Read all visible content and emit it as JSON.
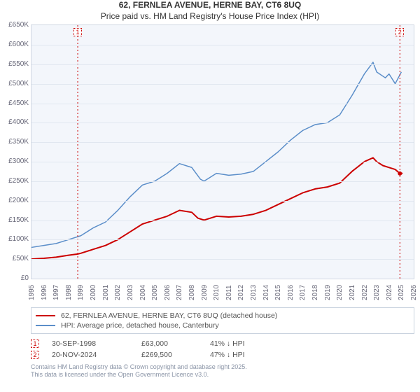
{
  "title": "62, FERNLEA AVENUE, HERNE BAY, CT6 8UQ",
  "subtitle": "Price paid vs. HM Land Registry's House Price Index (HPI)",
  "chart": {
    "type": "line",
    "background_color": "#f3f6fb",
    "grid_color": "#e1e7f0",
    "border_color": "#d0d7e2",
    "x": {
      "min": 1995,
      "max": 2026,
      "ticks": [
        1995,
        1996,
        1997,
        1998,
        1999,
        2000,
        2001,
        2002,
        2003,
        2004,
        2005,
        2006,
        2007,
        2008,
        2009,
        2010,
        2011,
        2012,
        2013,
        2014,
        2015,
        2016,
        2017,
        2018,
        2019,
        2020,
        2021,
        2022,
        2023,
        2024,
        2025,
        2026
      ]
    },
    "y": {
      "min": 0,
      "max": 650000,
      "tick_step": 50000,
      "prefix": "£",
      "suffix": "K",
      "divide": 1000
    },
    "series": [
      {
        "name": "62, FERNLEA AVENUE, HERNE BAY, CT6 8UQ (detached house)",
        "color": "#cc0000",
        "line_width": 2,
        "data": [
          [
            1995,
            50000
          ],
          [
            1996,
            52000
          ],
          [
            1997,
            55000
          ],
          [
            1998,
            60000
          ],
          [
            1998.75,
            63000
          ],
          [
            1999,
            65000
          ],
          [
            2000,
            75000
          ],
          [
            2001,
            85000
          ],
          [
            2002,
            100000
          ],
          [
            2003,
            120000
          ],
          [
            2004,
            140000
          ],
          [
            2005,
            150000
          ],
          [
            2006,
            160000
          ],
          [
            2007,
            175000
          ],
          [
            2008,
            170000
          ],
          [
            2008.5,
            155000
          ],
          [
            2009,
            150000
          ],
          [
            2010,
            160000
          ],
          [
            2011,
            158000
          ],
          [
            2012,
            160000
          ],
          [
            2013,
            165000
          ],
          [
            2014,
            175000
          ],
          [
            2015,
            190000
          ],
          [
            2016,
            205000
          ],
          [
            2017,
            220000
          ],
          [
            2018,
            230000
          ],
          [
            2019,
            235000
          ],
          [
            2020,
            245000
          ],
          [
            2021,
            275000
          ],
          [
            2022,
            300000
          ],
          [
            2022.7,
            310000
          ],
          [
            2023,
            300000
          ],
          [
            2023.5,
            290000
          ],
          [
            2024,
            285000
          ],
          [
            2024.5,
            280000
          ],
          [
            2024.88,
            269500
          ],
          [
            2025.1,
            270000
          ]
        ],
        "end_dot": {
          "x": 2024.88,
          "y": 269500,
          "radius": 3
        }
      },
      {
        "name": "HPI: Average price, detached house, Canterbury",
        "color": "#5b8ec9",
        "line_width": 1.5,
        "data": [
          [
            1995,
            80000
          ],
          [
            1996,
            85000
          ],
          [
            1997,
            90000
          ],
          [
            1998,
            100000
          ],
          [
            1999,
            110000
          ],
          [
            2000,
            130000
          ],
          [
            2001,
            145000
          ],
          [
            2002,
            175000
          ],
          [
            2003,
            210000
          ],
          [
            2004,
            240000
          ],
          [
            2005,
            250000
          ],
          [
            2006,
            270000
          ],
          [
            2007,
            295000
          ],
          [
            2008,
            285000
          ],
          [
            2008.7,
            255000
          ],
          [
            2009,
            250000
          ],
          [
            2010,
            270000
          ],
          [
            2011,
            265000
          ],
          [
            2012,
            268000
          ],
          [
            2013,
            275000
          ],
          [
            2014,
            300000
          ],
          [
            2015,
            325000
          ],
          [
            2016,
            355000
          ],
          [
            2017,
            380000
          ],
          [
            2018,
            395000
          ],
          [
            2019,
            400000
          ],
          [
            2020,
            420000
          ],
          [
            2021,
            470000
          ],
          [
            2022,
            525000
          ],
          [
            2022.7,
            555000
          ],
          [
            2023,
            530000
          ],
          [
            2023.7,
            515000
          ],
          [
            2024,
            525000
          ],
          [
            2024.5,
            500000
          ],
          [
            2025,
            530000
          ]
        ]
      }
    ],
    "markers": [
      {
        "label": "1",
        "x": 1998.75,
        "color": "#cc0000"
      },
      {
        "label": "2",
        "x": 2024.88,
        "color": "#cc0000"
      }
    ]
  },
  "legend": {
    "items": [
      {
        "color": "#cc0000",
        "label": "62, FERNLEA AVENUE, HERNE BAY, CT6 8UQ (detached house)"
      },
      {
        "color": "#5b8ec9",
        "label": "HPI: Average price, detached house, Canterbury"
      }
    ]
  },
  "events": [
    {
      "n": "1",
      "color": "#cc0000",
      "date": "30-SEP-1998",
      "price": "£63,000",
      "delta": "41% ↓ HPI"
    },
    {
      "n": "2",
      "color": "#cc0000",
      "date": "20-NOV-2024",
      "price": "£269,500",
      "delta": "47% ↓ HPI"
    }
  ],
  "footnote1": "Contains HM Land Registry data © Crown copyright and database right 2025.",
  "footnote2": "This data is licensed under the Open Government Licence v3.0."
}
